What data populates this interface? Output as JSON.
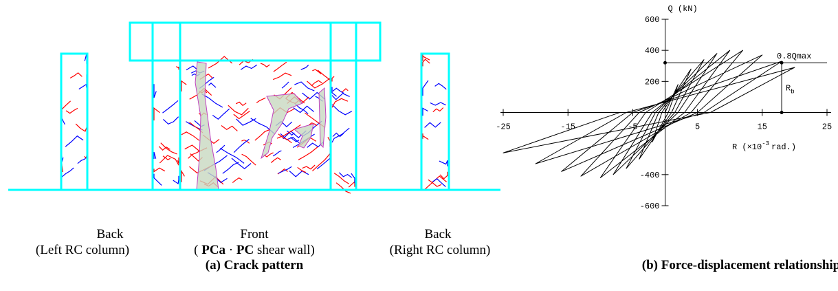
{
  "figure_a": {
    "panels": [
      {
        "name": "Back",
        "description": "(Left RC column)"
      },
      {
        "name": "Front",
        "description_parts": [
          "(",
          "PCa",
          "·",
          "PC",
          "shear wall)"
        ]
      },
      {
        "name": "Back",
        "description": "(Right RC column)"
      }
    ],
    "caption": "(a) Crack pattern"
  },
  "chart_data": {
    "type": "line",
    "caption": "(b) Force-displacement relationship",
    "y_label": "Q (kN)",
    "x_label_parts": [
      "R (",
      "×10",
      "-3",
      "rad.)"
    ],
    "xlim": [
      -25,
      25
    ],
    "xticks": [
      -25,
      -15,
      -5,
      5,
      15,
      25
    ],
    "ylim": [
      -600,
      600
    ],
    "yticks": [
      -600,
      -400,
      200,
      400,
      600
    ],
    "x": [
      0,
      2,
      0.5,
      -2,
      -0.5,
      4,
      1,
      -4,
      -1,
      6,
      1.5,
      -6,
      -1.5,
      8,
      2,
      -8,
      -2,
      10,
      3,
      -10,
      -3,
      12,
      4,
      -13,
      -4,
      15,
      5,
      -16,
      -5,
      18,
      6,
      -20,
      -6,
      20,
      7,
      -25,
      -7
    ],
    "series": [
      {
        "color": "#000000",
        "values": [
          0,
          180,
          0,
          -190,
          0,
          280,
          0,
          -300,
          0,
          340,
          0,
          -360,
          0,
          380,
          0,
          -400,
          0,
          400,
          0,
          -420,
          0,
          400,
          0,
          -410,
          0,
          370,
          0,
          -380,
          0,
          330,
          0,
          -330,
          0,
          290,
          0,
          -260,
          0
        ]
      }
    ],
    "annotations": {
      "qmax_line": {
        "label": "0.8Qmax",
        "value": 320
      },
      "rb": {
        "label": "R",
        "subscript": "b",
        "x": 18
      }
    }
  }
}
